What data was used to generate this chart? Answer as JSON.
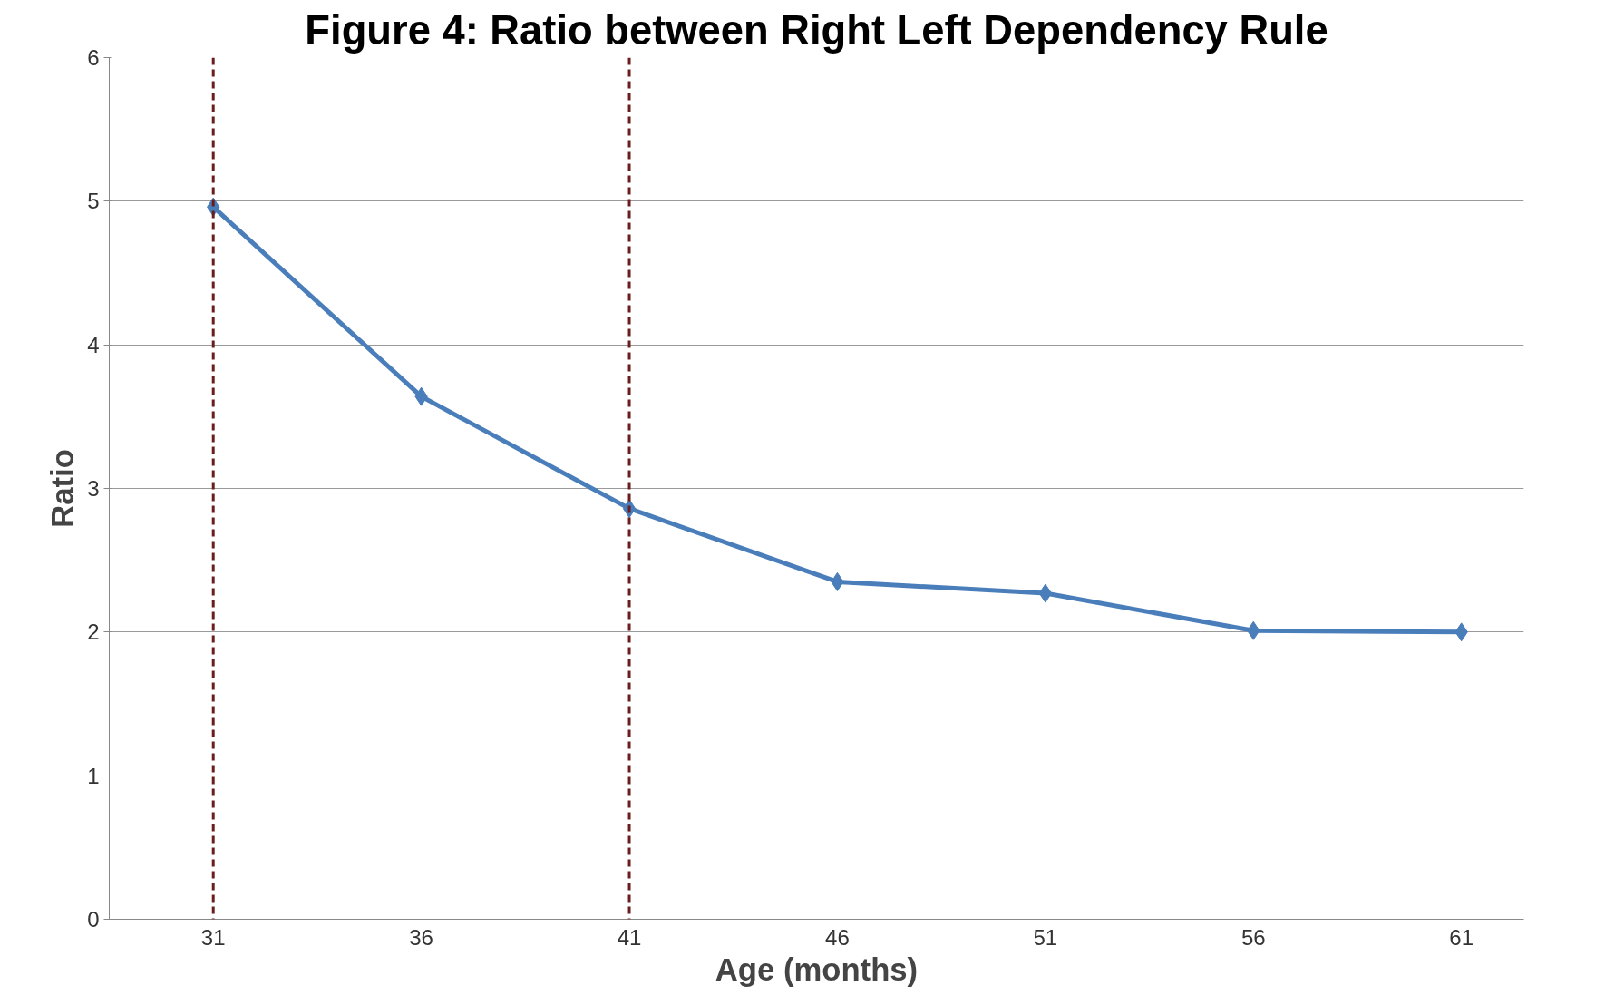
{
  "chart_data": {
    "type": "line",
    "title": "Figure 4: Ratio between Right Left Dependency Rule",
    "xlabel": "Age (months)",
    "ylabel": "Ratio",
    "x": [
      31,
      36,
      41,
      46,
      51,
      56,
      61
    ],
    "series": [
      {
        "color": "#4a7ebb",
        "values": [
          4.96,
          3.64,
          2.86,
          2.35,
          2.27,
          2.01,
          2.0
        ]
      }
    ],
    "xlim": [
      28.5,
      62.5
    ],
    "xticks": [
      31,
      36,
      41,
      46,
      51,
      56,
      61
    ],
    "ylim": [
      0,
      6
    ],
    "yticks": [
      0,
      1,
      2,
      3,
      4,
      5,
      6
    ],
    "grid": "y",
    "marker": "diamond",
    "line_style": "solid",
    "ref_lines": [
      {
        "axis": "x",
        "value": 31,
        "color": "#6b1c1c",
        "line_style": "dashed"
      },
      {
        "axis": "x",
        "value": 41,
        "color": "#6b1c1c",
        "line_style": "dashed"
      }
    ]
  }
}
